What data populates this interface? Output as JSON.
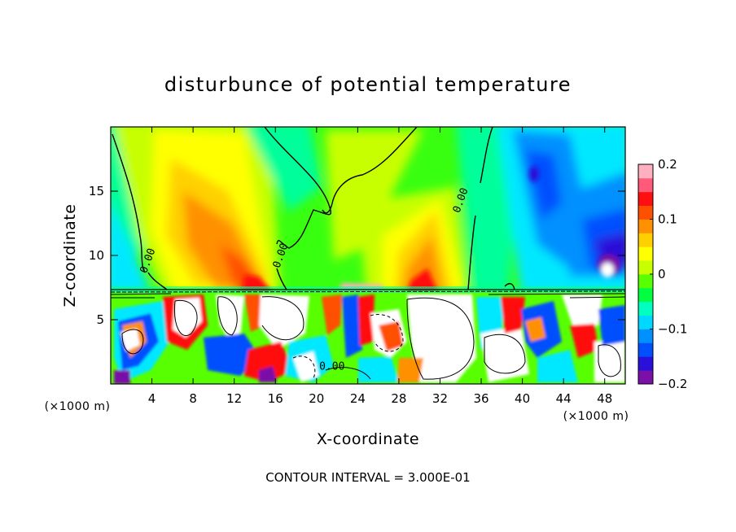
{
  "chart_data": {
    "type": "heatmap",
    "title": "disturbunce of potential temperature",
    "xlabel": "X-coordinate",
    "ylabel": "Z-coordinate",
    "x_unit": "(×1000 m)",
    "z_unit": "(×1000 m)",
    "xlim": [
      0,
      50
    ],
    "ylim": [
      0,
      20
    ],
    "x_ticks": [
      4,
      8,
      12,
      16,
      20,
      24,
      28,
      32,
      36,
      40,
      44,
      48
    ],
    "y_ticks": [
      5,
      10,
      15
    ],
    "colorbar": {
      "range": [
        -0.2,
        0.2
      ],
      "ticks": [
        {
          "value": 0.2,
          "label": "0.2"
        },
        {
          "value": 0.1,
          "label": "0.1"
        },
        {
          "value": 0,
          "label": "0"
        },
        {
          "value": -0.1,
          "label": "−0.1"
        },
        {
          "value": -0.2,
          "label": "−0.2"
        }
      ],
      "colors": [
        "#7a10a8",
        "#2a10d8",
        "#0050ff",
        "#0090ff",
        "#00d8ff",
        "#00ffc0",
        "#00ff40",
        "#58ff00",
        "#c8ff00",
        "#ffff00",
        "#ffd000",
        "#ff9000",
        "#ff5000",
        "#ff1010",
        "#ff5a7a",
        "#ffb0c0"
      ]
    },
    "contour_labels": [
      {
        "x": 3.9,
        "z": 9.5,
        "text": "0.00"
      },
      {
        "x": 16.8,
        "z": 9.9,
        "text": "0.00"
      },
      {
        "x": 34.3,
        "z": 14.2,
        "text": "0.00"
      },
      {
        "x": 21.5,
        "z": 1.1,
        "text": "0.00"
      }
    ],
    "contour_interval_text": "CONTOUR INTERVAL = 3.000E-01",
    "grid": false
  }
}
